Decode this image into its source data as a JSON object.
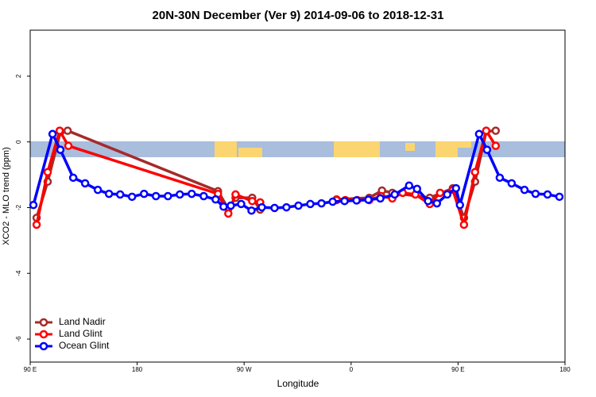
{
  "chart_data": {
    "type": "line",
    "title": "20N-30N December (Ver 9)   2014-09-06 to 2018-12-31",
    "x_label": "Longitude",
    "y_label": "XCO2 - MLO trend (ppm)",
    "xlim": [
      90,
      540
    ],
    "ylim": [
      -6.7,
      3.4
    ],
    "xticks": [
      {
        "value": 90,
        "label": "90 E"
      },
      180,
      {
        "value": 270,
        "label": "90 W"
      },
      {
        "value": 360,
        "label": "0"
      },
      {
        "value": 450,
        "label": "90 E"
      },
      {
        "value": 540,
        "label": "180"
      }
    ],
    "yticks": [
      -6,
      -4,
      -2,
      0,
      2
    ],
    "legend": "bottom-left",
    "series": [
      {
        "name": "Land Nadir",
        "color": "#a52a2a",
        "x": [
          95.4,
          104.7,
          115.4,
          121.5,
          248,
          256.7,
          262.8,
          276.8,
          283.5,
          null,
          347.8,
          375.3,
          386,
          394.7,
          426.2,
          445.6,
          455,
          464.3,
          473.7,
          481.7
        ],
        "values": [
          -2.31,
          -1.21,
          0.3,
          0.34,
          -1.5,
          -2.04,
          -1.7,
          -1.7,
          -2.06,
          null,
          -1.75,
          -1.7,
          -1.48,
          -1.55,
          -1.7,
          -1.41,
          -2.31,
          -1.21,
          0.32,
          0.34
        ]
      },
      {
        "name": "Land Glint",
        "color": "#ff0000",
        "x": [
          95.4,
          104.7,
          114.8,
          122.1,
          248,
          256.7,
          262.8,
          276.8,
          283.5,
          null,
          347.8,
          355.2,
          365.2,
          375.3,
          385.3,
          394.7,
          403.4,
          414.1,
          426.2,
          434.9,
          445.6,
          455,
          464.3,
          473.7,
          481.7
        ],
        "values": [
          -2.52,
          -0.92,
          0.34,
          -0.12,
          -1.58,
          -2.18,
          -1.6,
          -1.8,
          -1.84,
          null,
          -1.77,
          -1.77,
          -1.77,
          -1.77,
          -1.65,
          -1.72,
          -1.55,
          -1.6,
          -1.89,
          -1.55,
          -1.46,
          -2.52,
          -0.92,
          0.34,
          -0.12
        ]
      },
      {
        "name": "Ocean Glint",
        "color": "#0000ff",
        "x": [
          92.7,
          108.8,
          115.4,
          126.2,
          136.2,
          146.9,
          156.3,
          165.7,
          175.7,
          185.8,
          195.8,
          205.9,
          215.9,
          225.9,
          236,
          246,
          252.7,
          258.8,
          267.5,
          276.2,
          284.9,
          295.6,
          305.6,
          315.7,
          325.7,
          335.1,
          344.5,
          354.5,
          364.6,
          374.6,
          384.6,
          396.7,
          408.8,
          415.5,
          424.8,
          432.2,
          440.9,
          448.3,
          451.6,
          467.7,
          474.4,
          485.1,
          495.1,
          505.9,
          515.2,
          525.3,
          535.3
        ],
        "values": [
          -1.92,
          0.24,
          -0.24,
          -1.09,
          -1.26,
          -1.46,
          -1.58,
          -1.6,
          -1.67,
          -1.58,
          -1.65,
          -1.65,
          -1.6,
          -1.58,
          -1.65,
          -1.75,
          -1.97,
          -1.94,
          -1.89,
          -2.09,
          -1.99,
          -2.01,
          -1.99,
          -1.94,
          -1.89,
          -1.87,
          -1.82,
          -1.8,
          -1.78,
          -1.76,
          -1.72,
          -1.6,
          -1.33,
          -1.43,
          -1.8,
          -1.87,
          -1.6,
          -1.41,
          -1.92,
          0.24,
          -0.24,
          -1.09,
          -1.26,
          -1.46,
          -1.58,
          -1.6,
          -1.67
        ]
      }
    ]
  }
}
